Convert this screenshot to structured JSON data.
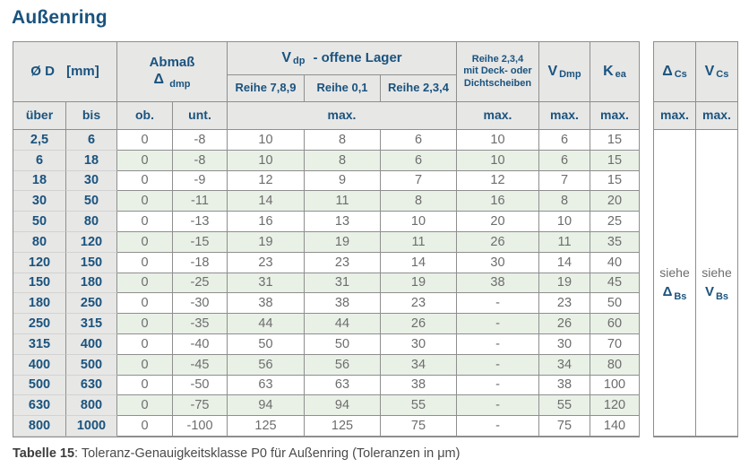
{
  "title": "Außenring",
  "caption": {
    "label": "Tabelle 15",
    "rest": ": Toleranz-Genauigkeitsklasse P0 für Außenring (Toleranzen in μm)"
  },
  "colors": {
    "accent_blue": "#1a537e",
    "header_bg": "#e7e7e6",
    "stripe_green": "#e9f1e7",
    "border_gray": "#8e8e8e",
    "data_text": "#6d6d6d"
  },
  "table": {
    "header": {
      "d": {
        "main": "Ø D",
        "unit": "[mm]"
      },
      "abmass": {
        "line1": "Abmaß",
        "sym": "Δ",
        "sub": "dmp"
      },
      "vdp": {
        "sym": "V",
        "sub": "dp",
        "rest": "-  offene Lager"
      },
      "reihe": [
        "Reihe 7,8,9",
        "Reihe 0,1",
        "Reihe 2,3,4"
      ],
      "deck": "Reihe 2,3,4\nmit Deck- oder\nDichtscheiben",
      "vdmp": {
        "sym": "V",
        "sub": "Dmp"
      },
      "kea": {
        "sym": "K",
        "sub": "ea"
      },
      "dcs": {
        "sym": "Δ",
        "sub": "Cs"
      },
      "vcs": {
        "sym": "V",
        "sub": "Cs"
      },
      "ueber": "über",
      "bis": "bis",
      "ob": "ob.",
      "unt": "unt.",
      "max": "max."
    },
    "rows": [
      [
        "2,5",
        "6",
        "0",
        "-8",
        "10",
        "8",
        "6",
        "10",
        "6",
        "15"
      ],
      [
        "6",
        "18",
        "0",
        "-8",
        "10",
        "8",
        "6",
        "10",
        "6",
        "15"
      ],
      [
        "18",
        "30",
        "0",
        "-9",
        "12",
        "9",
        "7",
        "12",
        "7",
        "15"
      ],
      [
        "30",
        "50",
        "0",
        "-11",
        "14",
        "11",
        "8",
        "16",
        "8",
        "20"
      ],
      [
        "50",
        "80",
        "0",
        "-13",
        "16",
        "13",
        "10",
        "20",
        "10",
        "25"
      ],
      [
        "80",
        "120",
        "0",
        "-15",
        "19",
        "19",
        "11",
        "26",
        "11",
        "35"
      ],
      [
        "120",
        "150",
        "0",
        "-18",
        "23",
        "23",
        "14",
        "30",
        "14",
        "40"
      ],
      [
        "150",
        "180",
        "0",
        "-25",
        "31",
        "31",
        "19",
        "38",
        "19",
        "45"
      ],
      [
        "180",
        "250",
        "0",
        "-30",
        "38",
        "38",
        "23",
        "-",
        "23",
        "50"
      ],
      [
        "250",
        "315",
        "0",
        "-35",
        "44",
        "44",
        "26",
        "-",
        "26",
        "60"
      ],
      [
        "315",
        "400",
        "0",
        "-40",
        "50",
        "50",
        "30",
        "-",
        "30",
        "70"
      ],
      [
        "400",
        "500",
        "0",
        "-45",
        "56",
        "56",
        "34",
        "-",
        "34",
        "80"
      ],
      [
        "500",
        "630",
        "0",
        "-50",
        "63",
        "63",
        "38",
        "-",
        "38",
        "100"
      ],
      [
        "630",
        "800",
        "0",
        "-75",
        "94",
        "94",
        "55",
        "-",
        "55",
        "120"
      ],
      [
        "800",
        "1000",
        "0",
        "-100",
        "125",
        "125",
        "75",
        "-",
        "75",
        "140"
      ]
    ],
    "notes": {
      "dcs": {
        "line1": "siehe",
        "sym": "Δ",
        "sub": "Bs"
      },
      "vcs": {
        "line1": "siehe",
        "sym": "V",
        "sub": "Bs"
      }
    }
  }
}
